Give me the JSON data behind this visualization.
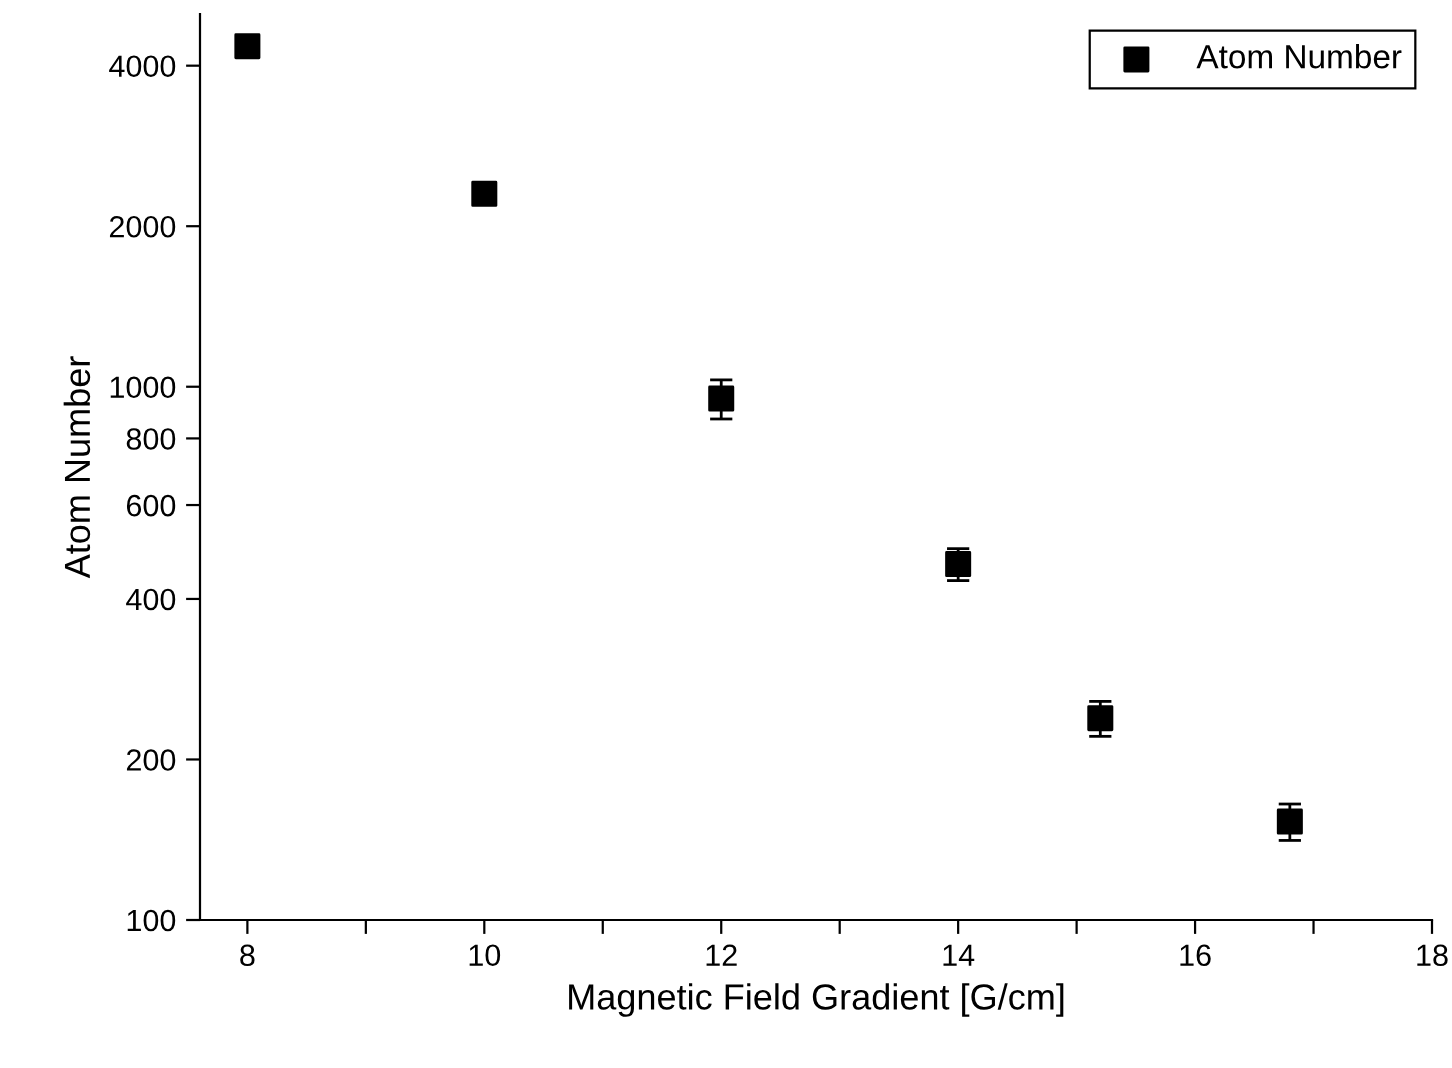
{
  "chart_data": {
    "type": "scatter",
    "xlabel": "Magnetic Field Gradient [G/cm]",
    "ylabel": "Atom Number",
    "x": [
      8,
      10,
      12,
      14,
      15.2,
      16.8
    ],
    "series": [
      {
        "name": "Atom Number",
        "color": "#000000",
        "values": [
          4350,
          2300,
          950,
          465,
          239,
          153
        ],
        "errors": [
          null,
          null,
          80,
          32,
          18,
          12
        ]
      }
    ],
    "log": "y",
    "xlim": [
      7.6,
      18
    ],
    "ylim": [
      100,
      5000
    ],
    "xticks": [
      8,
      {
        "value": 9,
        "label": null
      },
      10,
      {
        "value": 11,
        "label": null
      },
      12,
      {
        "value": 13,
        "label": null
      },
      14,
      {
        "value": 15,
        "label": null
      },
      16,
      {
        "value": 17,
        "label": null
      },
      18
    ],
    "yticks": [
      100,
      200,
      400,
      600,
      800,
      1000,
      2000,
      4000
    ],
    "marker": "square",
    "legend": "top right",
    "grid": false
  }
}
